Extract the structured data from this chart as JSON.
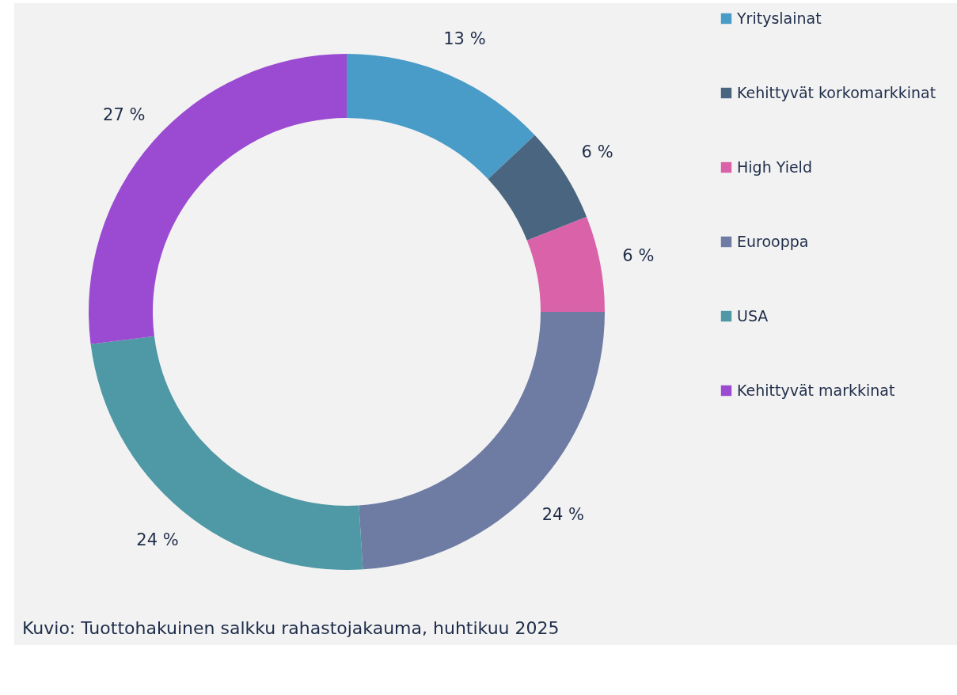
{
  "chart_data": {
    "type": "donut",
    "categories": [
      "Yrityslainat",
      "Kehittyvät korkomarkkinat",
      "High Yield",
      "Eurooppa",
      "USA",
      "Kehittyvät markkinat"
    ],
    "values": [
      13,
      6,
      6,
      24,
      24,
      27
    ],
    "colors": [
      "#4a9cc8",
      "#4a6580",
      "#d962a8",
      "#6e7ba3",
      "#4f98a6",
      "#9b4bd1"
    ],
    "value_labels": [
      "13 %",
      "6 %",
      "6 %",
      "24 %",
      "24 %",
      "27 %"
    ],
    "legend": "right",
    "annotations": [
      "Kuvio: Tuottohakuinen salkku rahastojakauma, huhtikuu 2025"
    ]
  }
}
